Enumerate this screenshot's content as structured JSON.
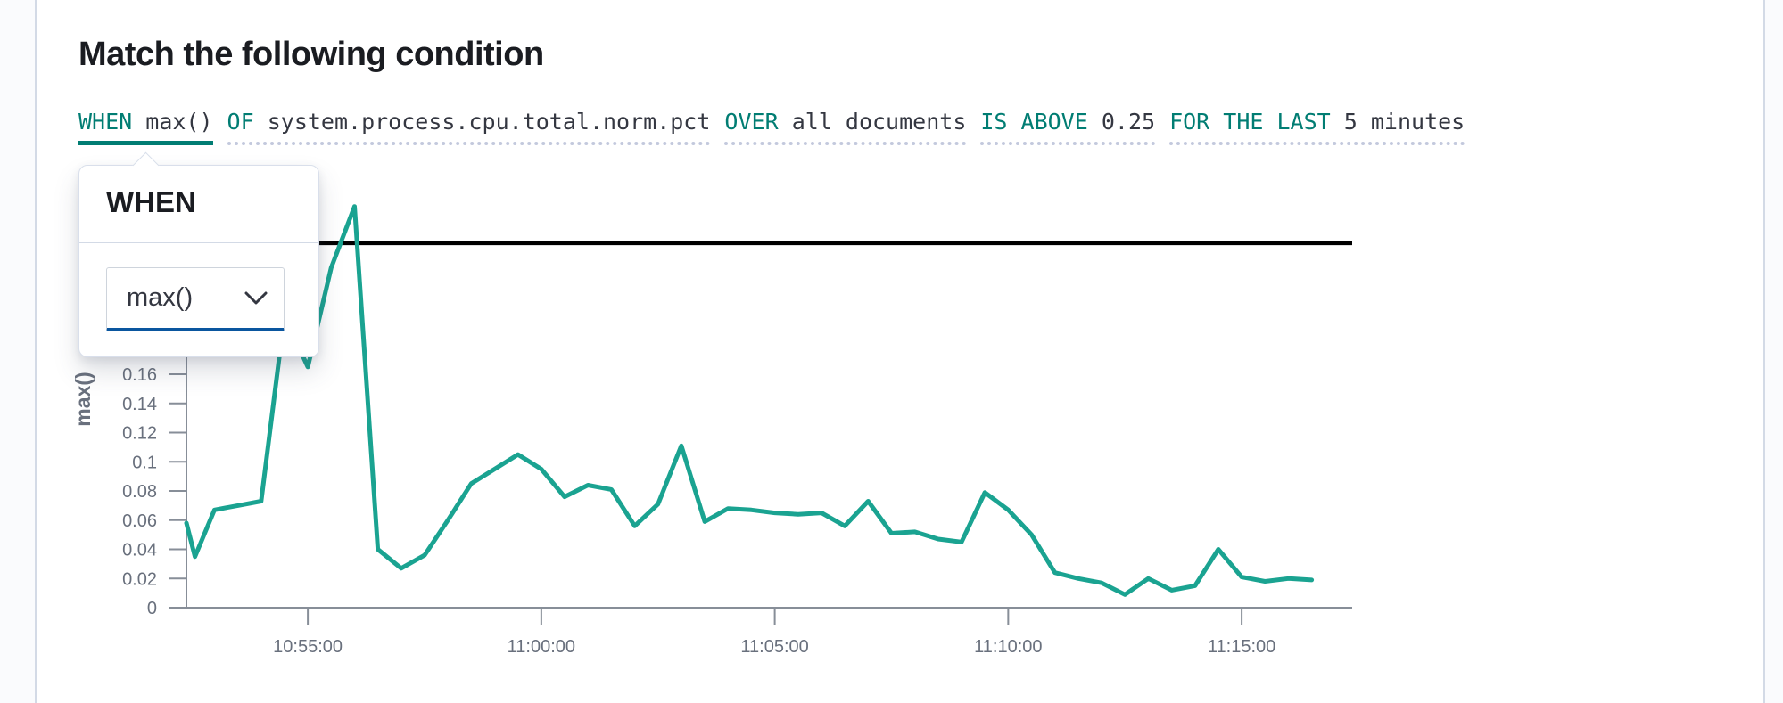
{
  "page": {
    "title": "Match the following condition"
  },
  "expression": {
    "clauses": [
      {
        "keyword": "WHEN",
        "value": "max()",
        "active": true
      },
      {
        "keyword": "OF",
        "value": "system.process.cpu.total.norm.pct",
        "active": false
      },
      {
        "keyword": "OVER",
        "value": "all documents",
        "active": false
      },
      {
        "keyword": "IS ABOVE",
        "value": "0.25",
        "active": false
      },
      {
        "keyword": "FOR THE LAST",
        "value": "5 minutes",
        "active": false
      }
    ]
  },
  "popover": {
    "title": "WHEN",
    "select_value": "max()",
    "chevron_icon": "chevron-down"
  },
  "colors": {
    "keyword_teal": "#017d73",
    "value_text": "#343741",
    "axis_gray": "#69707d",
    "axis_line": "#878e98",
    "series_green": "#1aa391",
    "threshold_black": "#000000",
    "select_focus_bar": "#0a569f",
    "panel_border": "#d3dae6"
  },
  "chart_data": {
    "type": "line",
    "title": "",
    "xlabel": "",
    "ylabel": "max()",
    "grid": false,
    "legend": "none",
    "ylim": [
      0,
      0.295
    ],
    "xlim": [
      "10:52:24",
      "11:17:22"
    ],
    "y_ticks": [
      0,
      0.02,
      0.04,
      0.06,
      0.08,
      0.1,
      0.12,
      0.14,
      0.16
    ],
    "x_ticks": [
      "10:55:00",
      "11:00:00",
      "11:05:00",
      "11:10:00",
      "11:15:00"
    ],
    "threshold": {
      "value": 0.25,
      "color": "#000000"
    },
    "series": [
      {
        "name": "max()",
        "color": "#1aa391",
        "points": [
          [
            "10:52:24",
            0.058
          ],
          [
            "10:52:35",
            0.035
          ],
          [
            "10:53:00",
            0.067
          ],
          [
            "10:53:30",
            0.07
          ],
          [
            "10:54:00",
            0.073
          ],
          [
            "10:54:30",
            0.2
          ],
          [
            "10:55:00",
            0.165
          ],
          [
            "10:55:30",
            0.233
          ],
          [
            "10:56:00",
            0.275
          ],
          [
            "10:56:30",
            0.04
          ],
          [
            "10:57:00",
            0.027
          ],
          [
            "10:57:30",
            0.036
          ],
          [
            "10:58:00",
            0.06
          ],
          [
            "10:58:30",
            0.085
          ],
          [
            "10:59:00",
            0.095
          ],
          [
            "10:59:30",
            0.105
          ],
          [
            "11:00:00",
            0.095
          ],
          [
            "11:00:30",
            0.076
          ],
          [
            "11:01:00",
            0.084
          ],
          [
            "11:01:30",
            0.081
          ],
          [
            "11:02:00",
            0.056
          ],
          [
            "11:02:30",
            0.071
          ],
          [
            "11:03:00",
            0.111
          ],
          [
            "11:03:30",
            0.059
          ],
          [
            "11:04:00",
            0.068
          ],
          [
            "11:04:30",
            0.067
          ],
          [
            "11:05:00",
            0.065
          ],
          [
            "11:05:30",
            0.064
          ],
          [
            "11:06:00",
            0.065
          ],
          [
            "11:06:30",
            0.056
          ],
          [
            "11:07:00",
            0.073
          ],
          [
            "11:07:30",
            0.051
          ],
          [
            "11:08:00",
            0.052
          ],
          [
            "11:08:30",
            0.047
          ],
          [
            "11:09:00",
            0.045
          ],
          [
            "11:09:30",
            0.079
          ],
          [
            "11:10:00",
            0.067
          ],
          [
            "11:10:30",
            0.05
          ],
          [
            "11:11:00",
            0.024
          ],
          [
            "11:11:30",
            0.02
          ],
          [
            "11:12:00",
            0.017
          ],
          [
            "11:12:30",
            0.009
          ],
          [
            "11:13:00",
            0.02
          ],
          [
            "11:13:30",
            0.012
          ],
          [
            "11:14:00",
            0.015
          ],
          [
            "11:14:30",
            0.04
          ],
          [
            "11:15:00",
            0.021
          ],
          [
            "11:15:30",
            0.018
          ],
          [
            "11:16:00",
            0.02
          ],
          [
            "11:16:30",
            0.019
          ]
        ]
      }
    ]
  }
}
